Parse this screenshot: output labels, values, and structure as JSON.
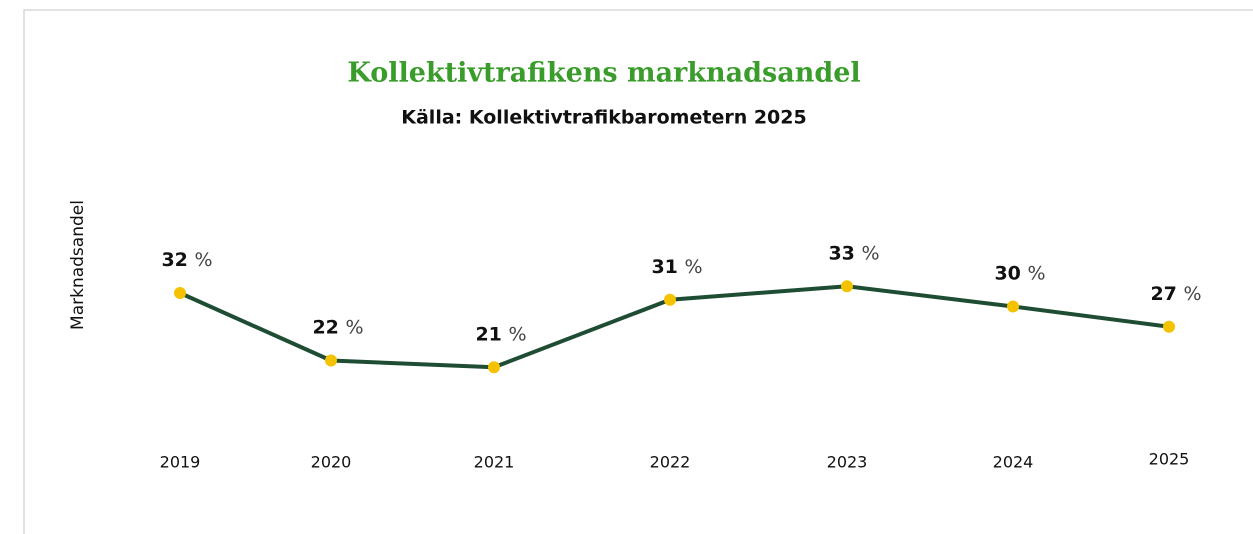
{
  "chart_data": {
    "type": "line",
    "title": "Kollektivtrafikens marknadsandel",
    "subtitle": "Källa: Kollektivtrafikbarometern 2025",
    "y_label": "Marknadsandel",
    "categories": [
      "2019",
      "2020",
      "2021",
      "2022",
      "2023",
      "2024",
      "2025"
    ],
    "series": [
      {
        "name": "Marknadsandel",
        "color": "#1f4d34",
        "marker_color": "#f5c200",
        "values": [
          32,
          22,
          21,
          31,
          33,
          30,
          27
        ],
        "value_labels": [
          "32 %",
          "22 %",
          "21 %",
          "31 %",
          "33 %",
          "30 %",
          "27 %"
        ]
      }
    ]
  }
}
